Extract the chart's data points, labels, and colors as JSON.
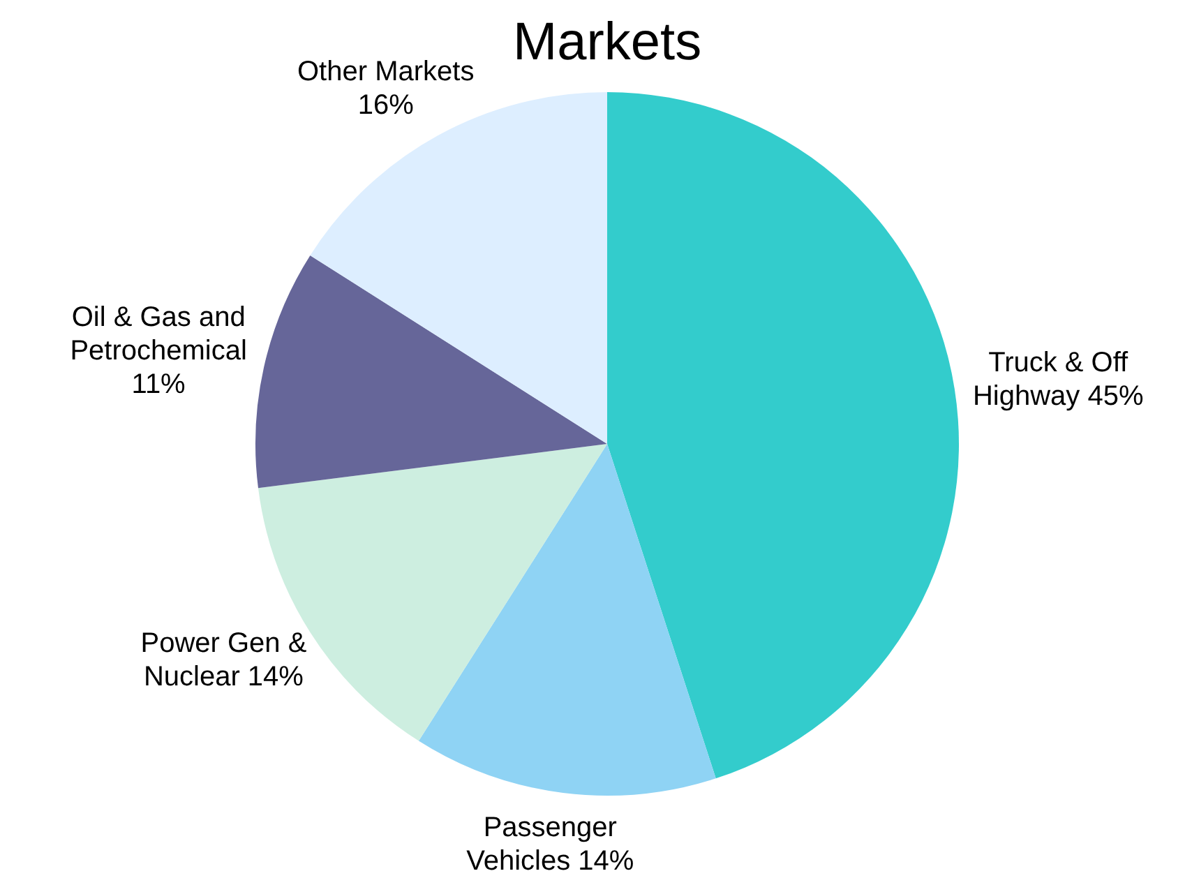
{
  "chart_data": {
    "type": "pie",
    "title": "Markets",
    "categories": [
      "Truck & Off Highway",
      "Passenger Vehicles",
      "Power Gen & Nuclear",
      "Oil & Gas and Petrochemical",
      "Other Markets"
    ],
    "values": [
      45,
      14,
      14,
      11,
      16
    ],
    "colors": [
      "#33cccc",
      "#8fd3f4",
      "#cdeee0",
      "#666699",
      "#ddeeff"
    ],
    "value_labels": [
      "45%",
      "14%",
      "14%",
      "11%",
      "16%"
    ],
    "legend": false
  }
}
